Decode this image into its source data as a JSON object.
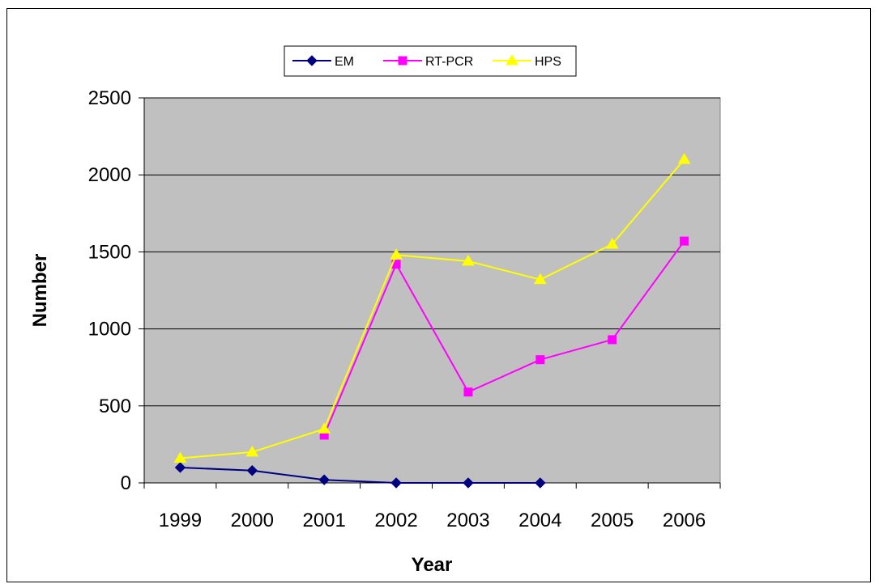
{
  "chart_data": {
    "type": "line",
    "title": "",
    "xlabel": "Year",
    "ylabel": "Number",
    "categories": [
      "1999",
      "2000",
      "2001",
      "2002",
      "2003",
      "2004",
      "2005",
      "2006"
    ],
    "ylim": [
      0,
      2500
    ],
    "yticks": [
      0,
      500,
      1000,
      1500,
      2000,
      2500
    ],
    "grid": true,
    "legend_position": "top",
    "plot_background": "#c0c0c0",
    "series": [
      {
        "name": "EM",
        "color": "#000080",
        "marker": "diamond",
        "values": [
          100,
          80,
          20,
          0,
          0,
          0,
          null,
          null
        ]
      },
      {
        "name": "RT-PCR",
        "color": "#ff00ff",
        "marker": "square",
        "values": [
          null,
          null,
          310,
          1420,
          590,
          800,
          930,
          1570
        ]
      },
      {
        "name": "HPS",
        "color": "#ffff00",
        "marker": "triangle",
        "values": [
          160,
          200,
          350,
          1480,
          1440,
          1320,
          1550,
          2100
        ]
      }
    ]
  }
}
